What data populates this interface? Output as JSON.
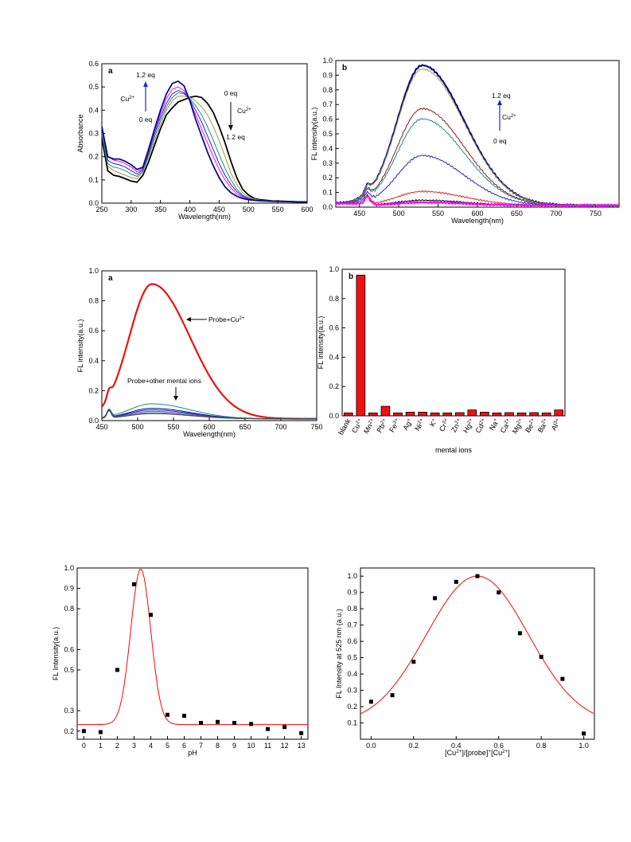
{
  "colors": {
    "series_palette": [
      "#000000",
      "#e02020",
      "#2020e0",
      "#1a8a8a",
      "#8b1a1a",
      "#a59a3a",
      "#0a0a8c",
      "#ff00ff",
      "#ff00ff",
      "#7a3aa0",
      "#444444"
    ],
    "bar": "#ee1111",
    "fit_line": "#ff0000",
    "point": "#000000"
  },
  "chart_data": [
    {
      "id": "uv-absorption",
      "type": "line",
      "panel_label": "a",
      "xlabel": "Wavelength(nm)",
      "ylabel": "Absorbance",
      "xlim": [
        250,
        600
      ],
      "ylim": [
        0,
        0.6
      ],
      "xticks": [
        250,
        300,
        350,
        400,
        450,
        500,
        550,
        600
      ],
      "yticks": [
        0.0,
        0.1,
        0.2,
        0.3,
        0.4,
        0.5,
        0.6
      ],
      "ytick_labels": [
        "0.0",
        "0.1",
        "0.2",
        "0.3",
        "0.4",
        "0.5",
        "0.6"
      ],
      "x": [
        250,
        260,
        270,
        280,
        290,
        300,
        310,
        320,
        330,
        340,
        350,
        360,
        370,
        380,
        390,
        400,
        410,
        420,
        430,
        440,
        450,
        460,
        470,
        480,
        490,
        500,
        510,
        520,
        540,
        560,
        580,
        600
      ],
      "series": [
        {
          "values": [
            0.28,
            0.14,
            0.12,
            0.115,
            0.105,
            0.095,
            0.09,
            0.12,
            0.18,
            0.25,
            0.32,
            0.38,
            0.41,
            0.435,
            0.445,
            0.455,
            0.46,
            0.455,
            0.43,
            0.39,
            0.33,
            0.26,
            0.18,
            0.11,
            0.06,
            0.035,
            0.02,
            0.015,
            0.01,
            0.008,
            0.006,
            0.005
          ],
          "color": "#000000"
        },
        {
          "values": [
            0.3,
            0.16,
            0.14,
            0.13,
            0.12,
            0.11,
            0.105,
            0.135,
            0.2,
            0.27,
            0.34,
            0.4,
            0.44,
            0.46,
            0.46,
            0.455,
            0.44,
            0.415,
            0.38,
            0.33,
            0.27,
            0.2,
            0.13,
            0.08,
            0.045,
            0.027,
            0.018,
            0.013,
            0.01,
            0.008,
            0.006,
            0.005
          ],
          "color": "#a59a3a"
        },
        {
          "values": [
            0.31,
            0.17,
            0.155,
            0.15,
            0.14,
            0.125,
            0.115,
            0.14,
            0.21,
            0.285,
            0.355,
            0.415,
            0.455,
            0.475,
            0.47,
            0.45,
            0.42,
            0.38,
            0.33,
            0.27,
            0.21,
            0.15,
            0.1,
            0.06,
            0.035,
            0.022,
            0.015,
            0.012,
            0.009,
            0.007,
            0.006,
            0.005
          ],
          "color": "#1a8a8a"
        },
        {
          "values": [
            0.32,
            0.185,
            0.17,
            0.165,
            0.155,
            0.14,
            0.125,
            0.145,
            0.22,
            0.3,
            0.37,
            0.43,
            0.47,
            0.485,
            0.475,
            0.445,
            0.4,
            0.35,
            0.29,
            0.23,
            0.17,
            0.12,
            0.08,
            0.05,
            0.03,
            0.02,
            0.014,
            0.011,
            0.009,
            0.007,
            0.006,
            0.005
          ],
          "color": "#2020e0"
        },
        {
          "values": [
            0.33,
            0.2,
            0.185,
            0.18,
            0.17,
            0.155,
            0.135,
            0.15,
            0.23,
            0.31,
            0.385,
            0.45,
            0.49,
            0.5,
            0.485,
            0.44,
            0.38,
            0.32,
            0.26,
            0.2,
            0.145,
            0.1,
            0.065,
            0.04,
            0.025,
            0.017,
            0.012,
            0.01,
            0.008,
            0.007,
            0.006,
            0.005
          ],
          "color": "#ff00ff"
        },
        {
          "values": [
            0.33,
            0.2,
            0.19,
            0.19,
            0.18,
            0.165,
            0.145,
            0.155,
            0.235,
            0.32,
            0.4,
            0.47,
            0.515,
            0.525,
            0.505,
            0.44,
            0.36,
            0.29,
            0.22,
            0.16,
            0.11,
            0.07,
            0.045,
            0.03,
            0.02,
            0.015,
            0.012,
            0.01,
            0.008,
            0.007,
            0.006,
            0.005
          ],
          "color": "#0a0a8c"
        }
      ],
      "annotations": [
        {
          "text": "1.2 eq"
        },
        {
          "text": "Cu2+"
        },
        {
          "text": "0 eq"
        },
        {
          "text": "0 eq"
        },
        {
          "text": "Cu2+"
        },
        {
          "text": "1.2 eq"
        }
      ]
    },
    {
      "id": "fl-titration",
      "type": "line",
      "panel_label": "b",
      "xlabel": "Wavelength(nm)",
      "ylabel": "FL intensity(a.u.)",
      "xlim": [
        420,
        780
      ],
      "ylim": [
        0,
        1.0
      ],
      "xticks": [
        450,
        500,
        550,
        600,
        650,
        700,
        750
      ],
      "yticks": [
        0.0,
        0.1,
        0.2,
        0.3,
        0.4,
        0.5,
        0.6,
        0.7,
        0.8,
        0.9,
        1.0
      ],
      "ytick_labels": [
        "0.0",
        "0.1",
        "0.2",
        "0.3",
        "0.4",
        "0.5",
        "0.6",
        "0.7",
        "0.8",
        "0.9",
        "1.0"
      ],
      "peak_wavelength": 530,
      "series": [
        {
          "peak": 0.955,
          "color": "#0a0a8c",
          "bold": true
        },
        {
          "peak": 0.93,
          "color": "#a59a3a"
        },
        {
          "peak": 0.66,
          "color": "#8b1a1a"
        },
        {
          "peak": 0.59,
          "color": "#1a8a8a"
        },
        {
          "peak": 0.34,
          "color": "#2020e0"
        },
        {
          "peak": 0.095,
          "color": "#e02020"
        },
        {
          "peak": 0.035,
          "color": "#000000"
        },
        {
          "peak": 0.02,
          "color": "#ff00ff",
          "bold": true
        }
      ],
      "annotations": [
        {
          "text": "1.2 eq"
        },
        {
          "text": "Cu2+"
        },
        {
          "text": "0 eq"
        }
      ]
    },
    {
      "id": "fl-selectivity",
      "type": "line",
      "panel_label": "a",
      "xlabel": "Wavelength(nm)",
      "ylabel": "FL intensity(a.u.)",
      "xlim": [
        450,
        750
      ],
      "ylim": [
        0,
        1.0
      ],
      "xticks": [
        450,
        500,
        550,
        600,
        650,
        700,
        750
      ],
      "yticks": [
        0.0,
        0.2,
        0.4,
        0.6,
        0.8,
        1.0
      ],
      "ytick_labels": [
        "0.0",
        "0.2",
        "0.4",
        "0.6",
        "0.8",
        "1.0"
      ],
      "peak_wavelength": 520,
      "series": [
        {
          "peak": 0.9,
          "color": "#ee1111",
          "bold": true
        },
        {
          "peak": 0.1,
          "color": "#1a8a8a"
        },
        {
          "peak": 0.07,
          "color": "#0a0a8c"
        },
        {
          "peak": 0.06,
          "color": "#2020e0"
        },
        {
          "peak": 0.05,
          "color": "#7a3aa0"
        },
        {
          "peak": 0.04,
          "color": "#1a8a8a"
        },
        {
          "peak": 0.035,
          "color": "#444444"
        }
      ],
      "annotations": [
        {
          "text": "Probe+Cu2+"
        },
        {
          "text": "Probe+other mental ions"
        }
      ]
    },
    {
      "id": "fl-bars",
      "type": "bar",
      "panel_label": "b",
      "xlabel": "mental ions",
      "ylabel": "FL intensity(a.u.)",
      "ylim": [
        0,
        1.0
      ],
      "yticks": [
        0.0,
        0.2,
        0.4,
        0.6,
        0.8,
        1.0
      ],
      "ytick_labels": [
        "0.0",
        "0.2",
        "0.4",
        "0.6",
        "0.8",
        "1.0"
      ],
      "categories": [
        "blank",
        "Cu2+",
        "Mn2+",
        "Pb2+",
        "Fe3+",
        "Ag+",
        "Ni2+",
        "K+",
        "Cr3+",
        "Zn2+",
        "Hg2+",
        "Cd2+",
        "Na+",
        "Ca2+",
        "Mg2+",
        "Be2+",
        "Ba2+",
        "Al3+"
      ],
      "values": [
        0.02,
        0.96,
        0.02,
        0.065,
        0.02,
        0.025,
        0.025,
        0.02,
        0.02,
        0.022,
        0.04,
        0.025,
        0.02,
        0.022,
        0.02,
        0.022,
        0.02,
        0.04
      ]
    },
    {
      "id": "ph-effect",
      "type": "scatter",
      "xlabel": "pH",
      "ylabel": "FL Intensity(a.u.)",
      "xlim": [
        -0.4,
        13.4
      ],
      "ylim": [
        0.16,
        1.0
      ],
      "xticks": [
        0,
        1,
        2,
        3,
        4,
        5,
        6,
        7,
        8,
        9,
        10,
        11,
        12,
        13
      ],
      "yticks": [
        0.2,
        0.3,
        0.5,
        0.6,
        0.8,
        0.9,
        1.0
      ],
      "ytick_labels": [
        "0.2",
        "0.3",
        "0.5",
        "0.6",
        "0.8",
        "0.9",
        "1.0"
      ],
      "x": [
        0,
        1,
        2,
        3,
        4,
        5,
        6,
        7,
        8,
        9,
        10,
        11,
        12,
        13
      ],
      "y": [
        0.2,
        0.195,
        0.5,
        0.92,
        0.77,
        0.28,
        0.275,
        0.24,
        0.245,
        0.24,
        0.235,
        0.21,
        0.22,
        0.19
      ],
      "fit": {
        "baseline": 0.232,
        "amplitude": 0.762,
        "center": 3.4,
        "width": 0.6
      }
    },
    {
      "id": "job-plot",
      "type": "scatter",
      "xlabel": "[Cu2+]/[probe]+[Cu2+]",
      "ylabel": "FL Intensity at 525 nm (a.u.)",
      "xlim": [
        -0.05,
        1.05
      ],
      "ylim": [
        0.0,
        1.05
      ],
      "xticks": [
        0.0,
        0.2,
        0.4,
        0.6,
        0.8,
        1.0
      ],
      "xtick_labels": [
        "0.0",
        "0.2",
        "0.4",
        "0.6",
        "0.8",
        "1.0"
      ],
      "yticks": [
        0.1,
        0.2,
        0.3,
        0.4,
        0.5,
        0.6,
        0.7,
        0.8,
        0.9,
        1.0
      ],
      "ytick_labels": [
        "0.1",
        "0.2",
        "0.3",
        "0.4",
        "0.5",
        "0.6",
        "0.7",
        "0.8",
        "0.9",
        "1.0"
      ],
      "x": [
        0.0,
        0.1,
        0.2,
        0.3,
        0.4,
        0.5,
        0.6,
        0.7,
        0.8,
        0.9,
        1.0
      ],
      "y": [
        0.23,
        0.27,
        0.475,
        0.865,
        0.965,
        1.0,
        0.9,
        0.65,
        0.505,
        0.37,
        0.035
      ],
      "fit": {
        "center": 0.5,
        "amplitude": 0.91,
        "baseline": 0.09,
        "width": 0.24
      }
    }
  ]
}
